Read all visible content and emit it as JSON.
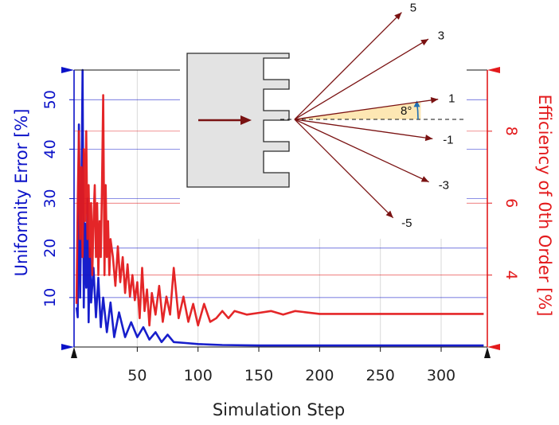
{
  "colors": {
    "left_series": "#0b12c8",
    "right_series": "#e31a1c",
    "grid": "#d9d9d9",
    "inset_arrow": "#7a1212",
    "wedge_fill": "#fde7b3",
    "angle_arc": "#1f6fb5"
  },
  "chart_data": {
    "type": "line",
    "title": "",
    "xlabel": "Simulation Step",
    "ylabel_left": "Uniformity Error [%]",
    "ylabel_right": "Efficiency of 0th Order [%]",
    "xlim": [
      -2,
      338
    ],
    "ylim_left": [
      0,
      56
    ],
    "ylim_right": [
      2,
      9.7
    ],
    "x_ticks": [
      50,
      100,
      150,
      200,
      250,
      300
    ],
    "x_tick_labels": [
      "50",
      "100",
      "150",
      "200",
      "250",
      "300"
    ],
    "y_left_ticks": [
      10,
      20,
      30,
      40,
      50
    ],
    "y_left_tick_labels": [
      "10",
      "20",
      "30",
      "40",
      "50"
    ],
    "y_right_ticks": [
      4,
      6,
      8
    ],
    "y_right_tick_labels": [
      "4",
      "6",
      "8"
    ],
    "grid": true,
    "legend": "none",
    "series": [
      {
        "axis": "left",
        "x": [
          0,
          1,
          2,
          3,
          4,
          5,
          6,
          7,
          8,
          9,
          10,
          11,
          12,
          14,
          16,
          18,
          20,
          22,
          25,
          28,
          31,
          35,
          40,
          45,
          50,
          55,
          60,
          65,
          70,
          75,
          80,
          90,
          100,
          110,
          120,
          150,
          200,
          250,
          300,
          335
        ],
        "y": [
          8,
          6,
          45,
          10,
          30,
          56,
          8,
          25,
          12,
          30,
          5,
          20,
          9,
          16,
          6,
          14,
          4,
          10,
          3,
          9,
          2,
          7,
          2,
          5,
          2,
          4,
          1.5,
          3,
          1,
          2.5,
          1,
          0.8,
          0.6,
          0.5,
          0.4,
          0.3,
          0.3,
          0.3,
          0.3,
          0.3
        ]
      },
      {
        "axis": "right",
        "x": [
          0,
          1,
          2,
          3,
          4,
          5,
          6,
          7,
          8,
          9,
          10,
          11,
          12,
          13,
          14,
          15,
          16,
          17,
          18,
          19,
          20,
          21,
          22,
          23,
          24,
          25,
          26,
          27,
          28,
          30,
          32,
          34,
          36,
          38,
          40,
          42,
          44,
          46,
          48,
          50,
          52,
          54,
          56,
          58,
          60,
          62,
          65,
          68,
          71,
          74,
          77,
          80,
          84,
          88,
          92,
          96,
          100,
          105,
          110,
          115,
          120,
          125,
          130,
          140,
          150,
          160,
          170,
          180,
          200,
          250,
          300,
          335
        ],
        "y": [
          3.2,
          6.0,
          8.0,
          5.0,
          7.0,
          4.5,
          7.5,
          5.5,
          8.0,
          5.0,
          6.5,
          4.5,
          6.0,
          4.0,
          5.5,
          6.5,
          4.5,
          6.0,
          4.0,
          5.5,
          4.5,
          6.5,
          9.0,
          4.0,
          6.5,
          4.5,
          5.5,
          4.0,
          5.0,
          4.5,
          3.7,
          4.8,
          3.8,
          4.5,
          3.5,
          4.3,
          3.4,
          4.0,
          3.3,
          3.8,
          2.8,
          4.2,
          3.0,
          3.6,
          2.6,
          3.5,
          2.9,
          3.7,
          2.7,
          3.4,
          2.9,
          4.2,
          2.8,
          3.4,
          2.7,
          3.2,
          2.6,
          3.2,
          2.7,
          2.8,
          3.0,
          2.8,
          3.0,
          2.9,
          2.95,
          3.0,
          2.9,
          3.0,
          2.92,
          2.92,
          2.92,
          2.92
        ]
      }
    ],
    "inset": {
      "angle_label": "8°",
      "orders": [
        {
          "label": "5",
          "angle_deg": 45
        },
        {
          "label": "3",
          "angle_deg": 31
        },
        {
          "label": "1",
          "angle_deg": 8
        },
        {
          "label": "-1",
          "angle_deg": -8
        },
        {
          "label": "-3",
          "angle_deg": -25
        },
        {
          "label": "-5",
          "angle_deg": -45
        }
      ]
    }
  }
}
